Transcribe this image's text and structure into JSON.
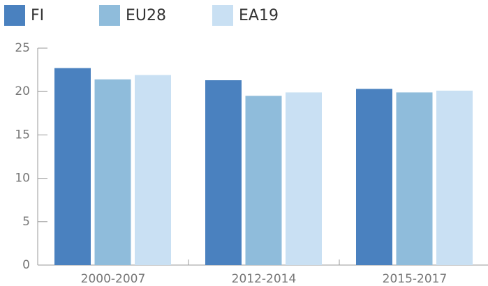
{
  "chart_data": {
    "type": "bar",
    "categories": [
      "2000-2007",
      "2012-2014",
      "2015-2017"
    ],
    "series": [
      {
        "name": "FI",
        "color": "#4a81bf",
        "values": [
          22.7,
          21.3,
          20.3
        ]
      },
      {
        "name": "EU28",
        "color": "#8fbcdb",
        "values": [
          21.4,
          19.5,
          19.9
        ]
      },
      {
        "name": "EA19",
        "color": "#c9e0f3",
        "values": [
          21.9,
          19.9,
          20.1
        ]
      }
    ],
    "ylim": [
      0,
      25
    ],
    "yticks": [
      0,
      5,
      10,
      15,
      20,
      25
    ],
    "legend": "top-left"
  }
}
